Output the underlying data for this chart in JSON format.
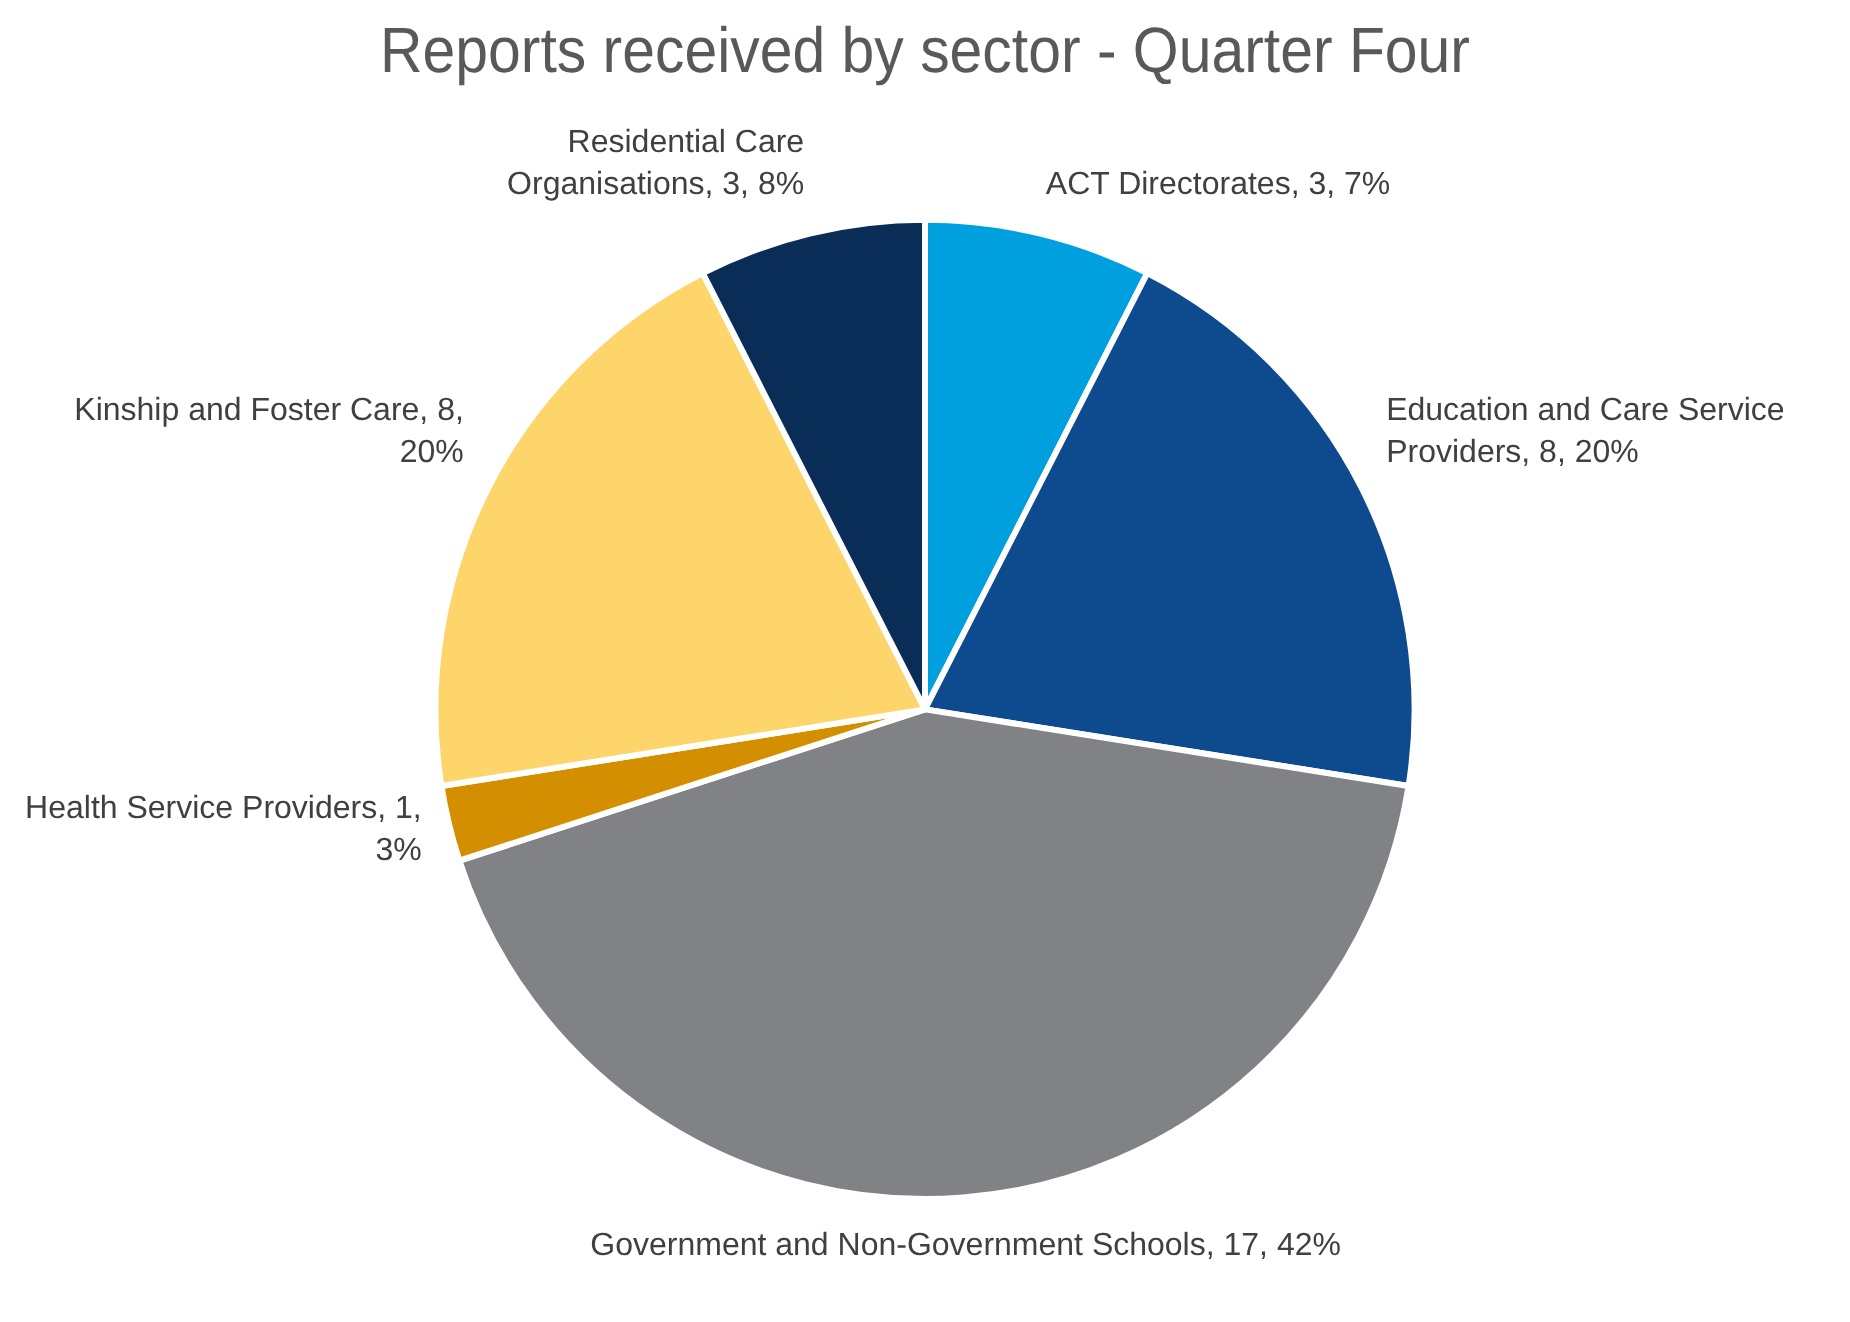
{
  "chart_data": {
    "type": "pie",
    "title": "Reports received by sector - Quarter Four",
    "categories": [
      "ACT Directorates",
      "Education and Care Service Providers",
      "Government and Non-Government Schools",
      "Health Service Providers",
      "Kinship and Foster Care",
      "Residential Care Organisations"
    ],
    "values": [
      3,
      8,
      17,
      1,
      8,
      3
    ],
    "value_labels": [
      "3, 7%",
      "8, 20%",
      "17, 42%",
      "1, 3%",
      "8, 20%",
      "3, 8%"
    ],
    "colors": [
      "#00a0df",
      "#0e4a8e",
      "#808285",
      "#d48f00",
      "#fdd56b",
      "#0a2d57"
    ],
    "legend": false
  }
}
